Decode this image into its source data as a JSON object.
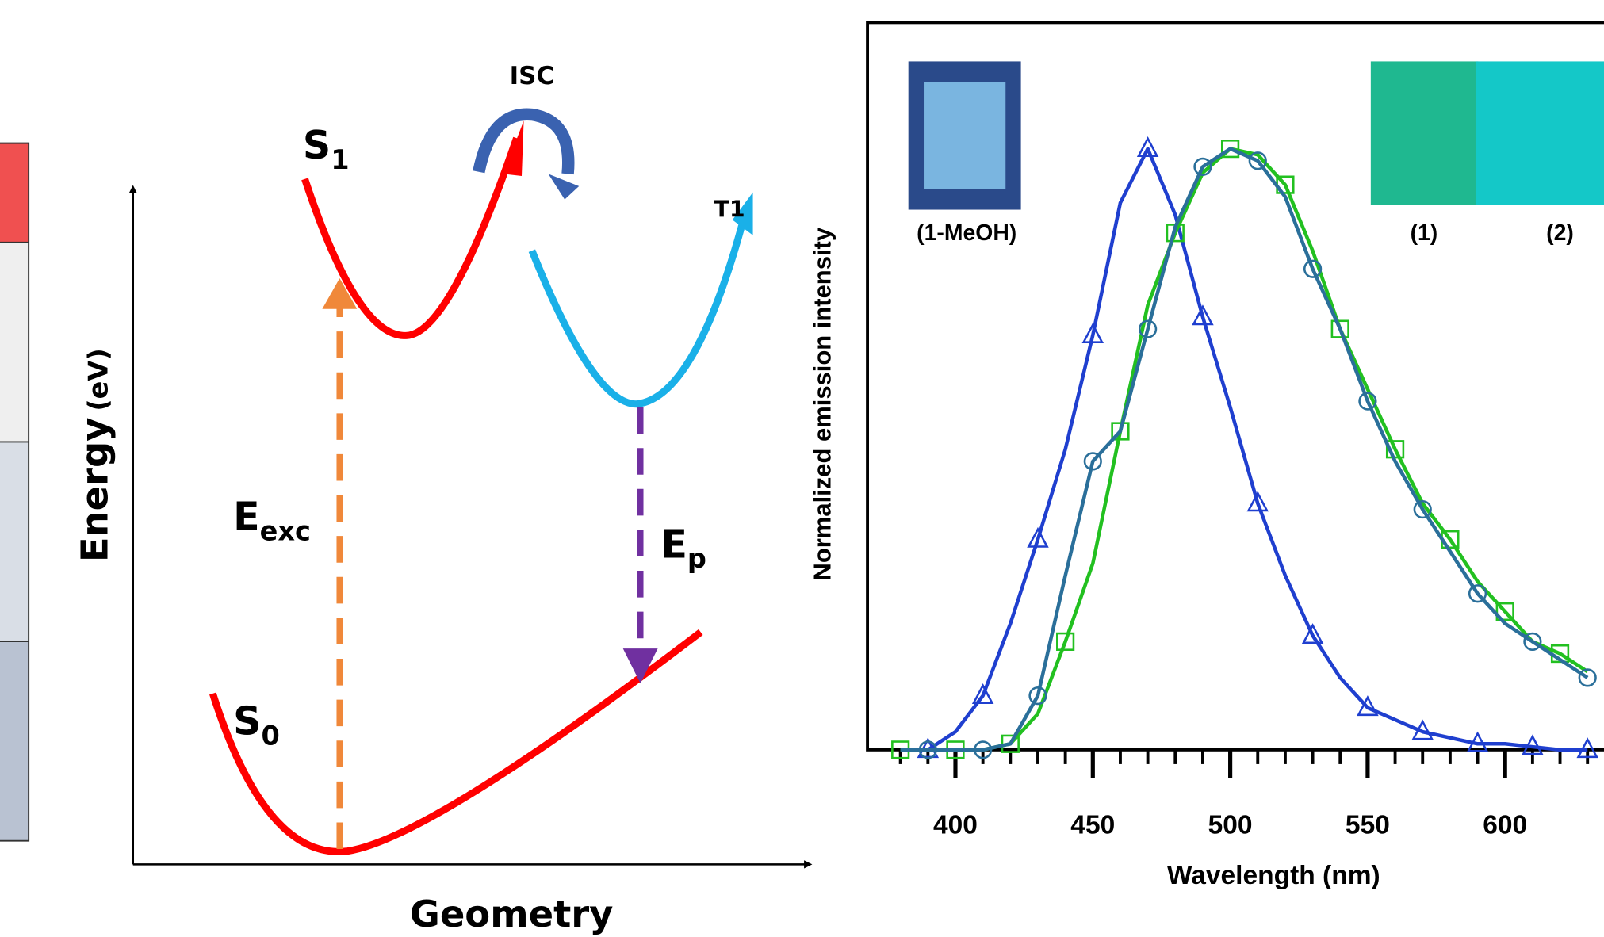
{
  "diagram": {
    "isc": "ISC",
    "s1": "S",
    "s1_sub": "1",
    "t1": "T1",
    "eexc": "E",
    "eexc_sub": "exc",
    "ep": "E",
    "ep_sub": "p",
    "s0": "S",
    "s0_sub": "0",
    "ylabel": "Energy",
    "ylabel_unit": "(eV)",
    "xlabel": "Geometry"
  },
  "chart_data": {
    "type": "line",
    "xlabel": "Wavelength (nm)",
    "ylabel": "Normalized emission intensity",
    "x": [
      380,
      390,
      400,
      410,
      420,
      430,
      440,
      450,
      460,
      470,
      480,
      490,
      500,
      510,
      520,
      530,
      540,
      550,
      560,
      570,
      580,
      590,
      600,
      610,
      620,
      630
    ],
    "series": [
      {
        "name": "(1-MeOH)",
        "color": "#1f3fcf",
        "marker": "triangle",
        "values": [
          0,
          0,
          0.03,
          0.09,
          0.21,
          0.35,
          0.5,
          0.69,
          0.91,
          1.0,
          0.89,
          0.72,
          0.57,
          0.41,
          0.29,
          0.19,
          0.12,
          0.07,
          0.05,
          0.03,
          0.02,
          0.01,
          0.01,
          0.005,
          0,
          0
        ]
      },
      {
        "name": "(1)",
        "color": "#22c020",
        "marker": "square",
        "values": [
          0,
          0,
          0,
          0,
          0.01,
          0.06,
          0.18,
          0.31,
          0.53,
          0.74,
          0.86,
          0.96,
          1.0,
          0.99,
          0.94,
          0.83,
          0.7,
          0.6,
          0.5,
          0.41,
          0.35,
          0.28,
          0.23,
          0.18,
          0.16,
          0.13
        ]
      },
      {
        "name": "(2)",
        "color": "#2a6f9a",
        "marker": "circle",
        "values": [
          0,
          0,
          0,
          0,
          0.01,
          0.09,
          0.29,
          0.48,
          0.53,
          0.7,
          0.87,
          0.97,
          1.0,
          0.98,
          0.92,
          0.8,
          0.7,
          0.58,
          0.48,
          0.4,
          0.33,
          0.26,
          0.21,
          0.18,
          0.15,
          0.12
        ]
      }
    ],
    "xlim": [
      368,
      636
    ],
    "ylim": [
      0,
      1.21
    ],
    "xticks": [
      400,
      450,
      500,
      550,
      600
    ],
    "xminorticks": [
      380,
      390,
      410,
      420,
      430,
      440,
      460,
      470,
      480,
      490,
      510,
      520,
      530,
      540,
      560,
      570,
      580,
      590,
      610,
      620,
      630
    ]
  }
}
